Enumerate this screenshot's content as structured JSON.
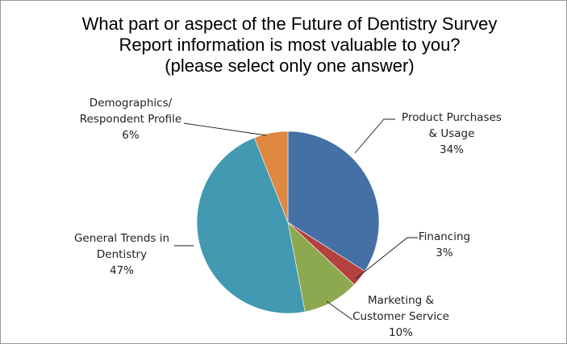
{
  "chart_data": {
    "type": "pie",
    "title_lines": [
      "What part or aspect of the Future of Dentistry Survey",
      "Report information is most valuable to you?",
      "(please select only one answer)"
    ],
    "slices": [
      {
        "label_lines": [
          "Product Purchases",
          "& Usage"
        ],
        "percent_label": "34%",
        "value": 34,
        "color": "#4470A6"
      },
      {
        "label_lines": [
          "Financing"
        ],
        "percent_label": "3%",
        "value": 3,
        "color": "#B3413D"
      },
      {
        "label_lines": [
          "Marketing &",
          "Customer Service"
        ],
        "percent_label": "10%",
        "value": 10,
        "color": "#8DA94F"
      },
      {
        "label_lines": [
          "General Trends in",
          "Dentistry"
        ],
        "percent_label": "47%",
        "value": 47,
        "color": "#4299B1"
      },
      {
        "label_lines": [
          "Demographics/",
          "Respondent Profile"
        ],
        "percent_label": "6%",
        "value": 6,
        "color": "#DE8841"
      }
    ],
    "start_angle": "12 o'clock",
    "direction": "clockwise",
    "legend": "none",
    "data_labels": "outside with leader lines"
  }
}
